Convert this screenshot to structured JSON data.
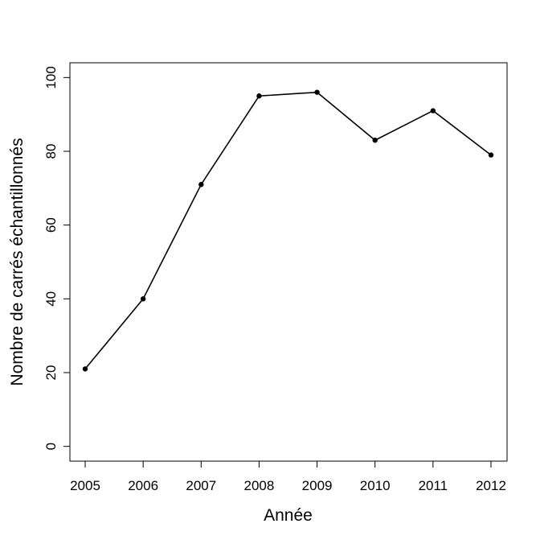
{
  "chart_data": {
    "type": "line",
    "title": "",
    "xlabel": "Année",
    "ylabel": "Nombre de carrés échantillonnés",
    "categories": [
      "2005",
      "2006",
      "2007",
      "2008",
      "2009",
      "2010",
      "2011",
      "2012"
    ],
    "series": [
      {
        "values": [
          21,
          40,
          71,
          95,
          96,
          83,
          91,
          79
        ]
      }
    ],
    "ylim": [
      -4,
      104
    ],
    "yticks": [
      0,
      20,
      40,
      60,
      80,
      100
    ],
    "grid": false,
    "legend": "none",
    "color": "#000000",
    "marker": "filled-circle"
  }
}
